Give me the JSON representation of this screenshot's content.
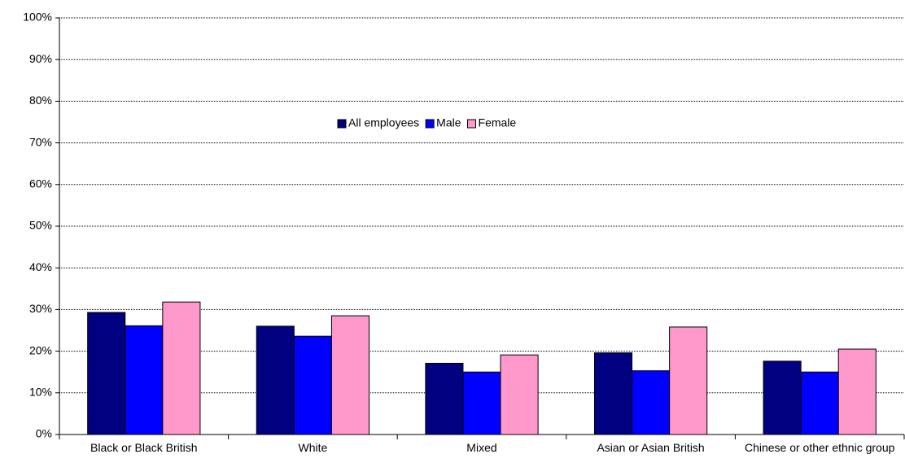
{
  "chart_data": {
    "type": "bar",
    "categories": [
      "Black or Black British",
      "White",
      "Mixed",
      "Asian or Asian British",
      "Chinese or other ethnic group"
    ],
    "series": [
      {
        "name": "All employees",
        "color": "#000080",
        "values": [
          29.3,
          26.0,
          17.1,
          19.6,
          17.6
        ]
      },
      {
        "name": "Male",
        "color": "#0000ff",
        "values": [
          26.1,
          23.6,
          15.0,
          15.3,
          15.0
        ]
      },
      {
        "name": "Female",
        "color": "#ff99cc",
        "values": [
          31.8,
          28.5,
          19.1,
          25.8,
          20.5
        ]
      }
    ],
    "ylim": [
      0,
      100
    ],
    "yticks": [
      {
        "value": 0,
        "label": "0%"
      },
      {
        "value": 10,
        "label": "10%"
      },
      {
        "value": 20,
        "label": "20%"
      },
      {
        "value": 30,
        "label": "30%"
      },
      {
        "value": 40,
        "label": "40%"
      },
      {
        "value": 50,
        "label": "50%"
      },
      {
        "value": 60,
        "label": "60%"
      },
      {
        "value": 70,
        "label": "70%"
      },
      {
        "value": 80,
        "label": "80%"
      },
      {
        "value": 90,
        "label": "90%"
      },
      {
        "value": 100,
        "label": "100%"
      }
    ],
    "grid": true,
    "legend": "center"
  }
}
